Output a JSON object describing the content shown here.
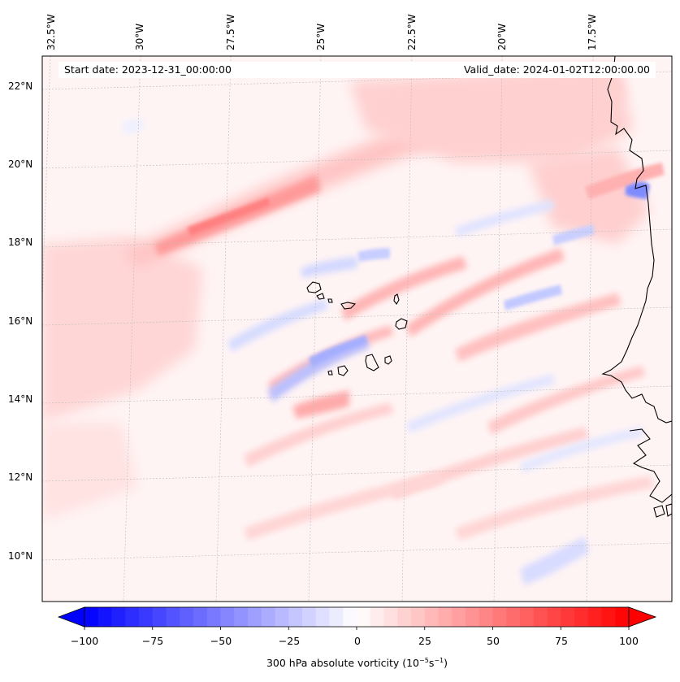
{
  "map": {
    "title_left": "Start date: 2023-12-31_00:00:00",
    "title_right": "Valid_date: 2024-01-02T12:00:00.00",
    "longitude_labels": [
      "32.5°W",
      "30°W",
      "27.5°W",
      "25°W",
      "22.5°W",
      "20°W",
      "17.5°W"
    ],
    "latitude_labels": [
      "22°N",
      "20°N",
      "18°N",
      "16°N",
      "14°N",
      "12°N",
      "10°N"
    ],
    "field": "300 hPa absolute vorticity",
    "region": "Cabo Verde / West African coast"
  },
  "colorbar": {
    "ticks": [
      "−100",
      "−75",
      "−50",
      "−25",
      "0",
      "25",
      "50",
      "75",
      "100"
    ],
    "label_prefix": "300 hPa absolute vorticity (10",
    "label_exp1": "−5",
    "label_mid": "s",
    "label_exp2": "−1",
    "label_suffix": ")",
    "min": -100,
    "max": 100,
    "levels": 41,
    "neg_color": "#0000ff",
    "pos_color": "#ff0000"
  }
}
